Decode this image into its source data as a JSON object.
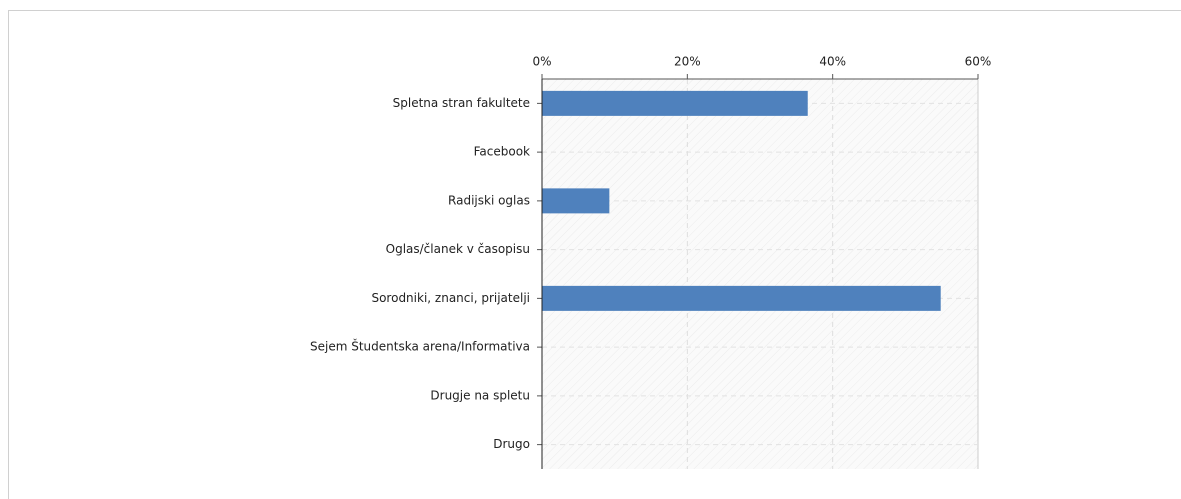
{
  "chart_data": {
    "type": "bar",
    "orientation": "horizontal",
    "categories": [
      "Spletna stran fakultete",
      "Facebook",
      "Radijski oglas",
      "Oglas/članek v časopisu",
      "Sorodniki, znanci, prijatelji",
      "Sejem Študentska arena/Informativa",
      "Drugje na spletu",
      "Drugo"
    ],
    "values": [
      36.5,
      0,
      9.2,
      0,
      54.8,
      0,
      0,
      0
    ],
    "color": "#4f81bd",
    "xlim": [
      0,
      60
    ],
    "xticks": [
      {
        "value": 0,
        "label": "0%"
      },
      {
        "value": 20,
        "label": "20%"
      },
      {
        "value": 40,
        "label": "40%"
      },
      {
        "value": 60,
        "label": "60%"
      }
    ],
    "grid": true
  }
}
